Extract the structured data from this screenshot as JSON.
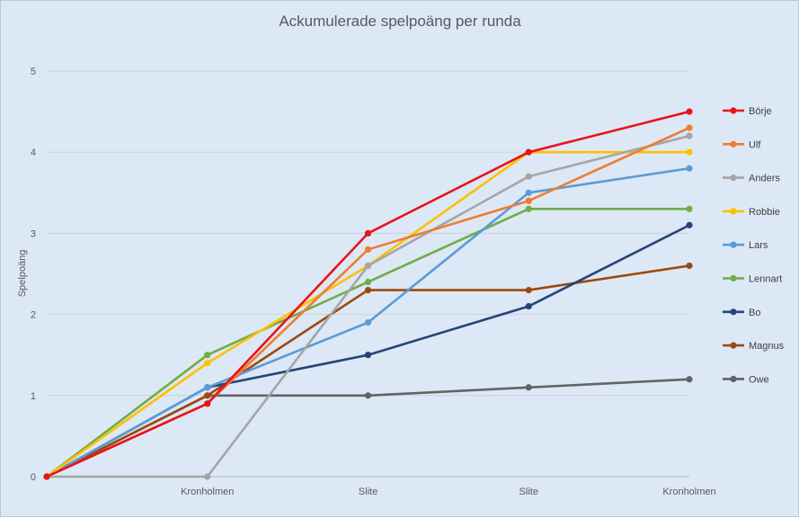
{
  "chart_data": {
    "type": "line",
    "title": "Ackumulerade spelpoäng per runda",
    "xlabel": "",
    "ylabel": "Spelpoäng",
    "categories": [
      "",
      "Kronholmen",
      "Slite",
      "Slite",
      "Kronholmen"
    ],
    "ylim": [
      0,
      5
    ],
    "yticks": [
      "0",
      "1",
      "2",
      "3",
      "4",
      "5"
    ],
    "grid": true,
    "legend_position": "right",
    "series": [
      {
        "name": "Börje",
        "color": "#e8141b",
        "values": [
          0,
          0.9,
          3.0,
          4.0,
          4.5
        ]
      },
      {
        "name": "Ulf",
        "color": "#ed7d31",
        "values": [
          0,
          0.9,
          2.8,
          3.4,
          4.3
        ]
      },
      {
        "name": "Anders",
        "color": "#a5a5a5",
        "values": [
          0,
          0.0,
          2.6,
          3.7,
          4.2
        ]
      },
      {
        "name": "Robbie",
        "color": "#ffc000",
        "values": [
          0,
          1.4,
          2.6,
          4.0,
          4.0
        ]
      },
      {
        "name": "Lars",
        "color": "#5b9bd5",
        "values": [
          0,
          1.1,
          1.9,
          3.5,
          3.8
        ]
      },
      {
        "name": "Lennart",
        "color": "#70ad47",
        "values": [
          0,
          1.5,
          2.4,
          3.3,
          3.3
        ]
      },
      {
        "name": "Bo",
        "color": "#264478",
        "values": [
          0,
          1.1,
          1.5,
          2.1,
          3.1
        ]
      },
      {
        "name": "Magnus",
        "color": "#9e480e",
        "values": [
          0,
          1.0,
          2.3,
          2.3,
          2.6
        ]
      },
      {
        "name": "Owe",
        "color": "#636363",
        "values": [
          0,
          1.0,
          1.0,
          1.1,
          1.2
        ]
      }
    ]
  }
}
